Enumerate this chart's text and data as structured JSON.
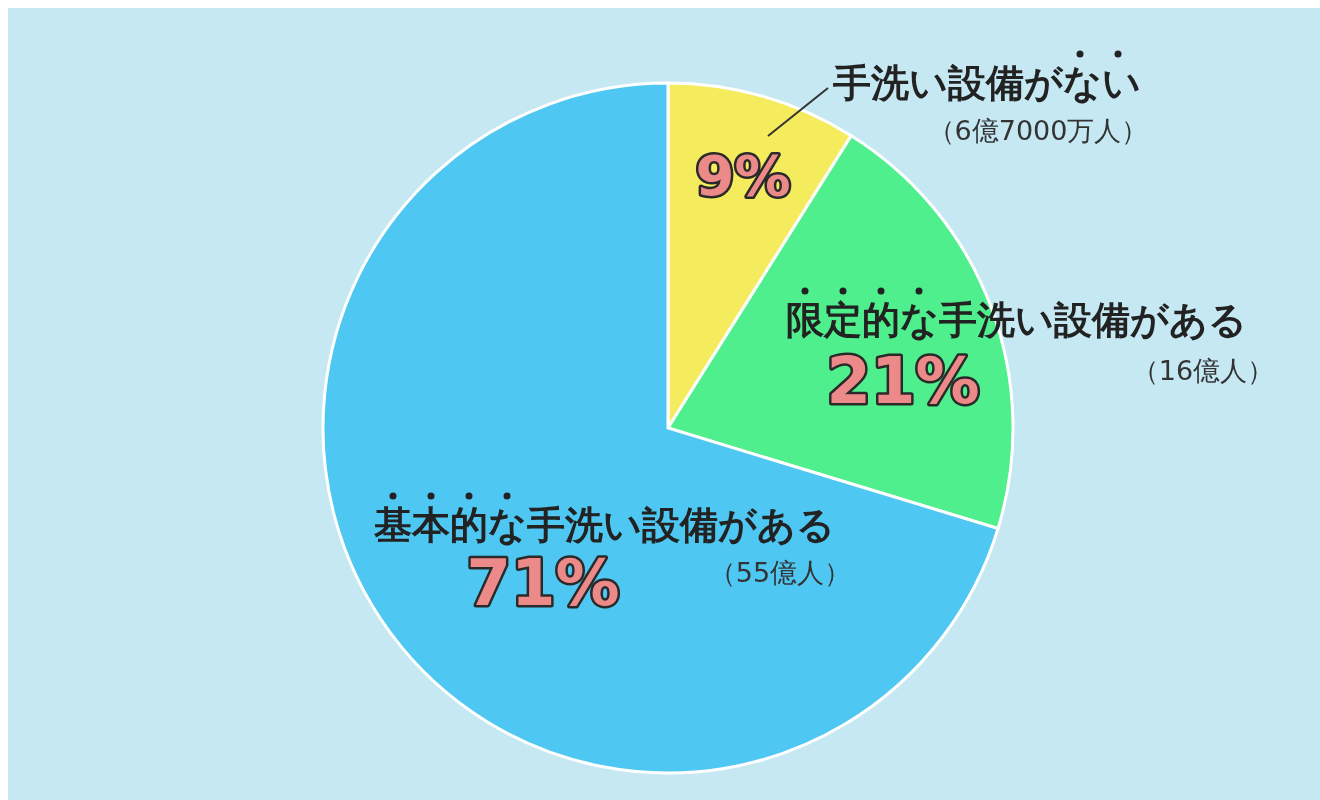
{
  "chart_data": {
    "type": "pie",
    "categories": [
      "手洗い設備がない",
      "限定的な手洗い設備がある",
      "基本的な手洗い設備がある"
    ],
    "values": [
      9,
      21,
      71
    ],
    "value_labels": [
      "9%",
      "21%",
      "71%"
    ],
    "colors": [
      "#f4ec5c",
      "#4eef8c",
      "#4ec8f2"
    ],
    "annotations": [
      "（6億7000万人）",
      "（16億人）",
      "（55億人）"
    ]
  }
}
